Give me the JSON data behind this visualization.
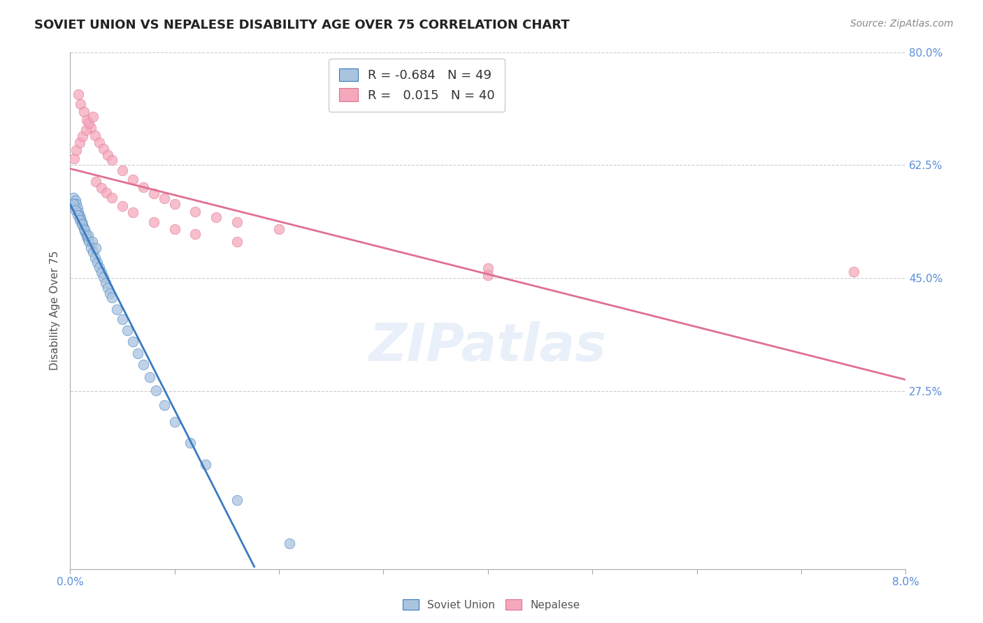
{
  "title": "SOVIET UNION VS NEPALESE DISABILITY AGE OVER 75 CORRELATION CHART",
  "source": "Source: ZipAtlas.com",
  "ylabel": "Disability Age Over 75",
  "x_min": 0.0,
  "x_max": 0.08,
  "y_min": 0.0,
  "y_max": 0.8,
  "y_ticks": [
    0.275,
    0.45,
    0.625,
    0.8
  ],
  "y_tick_labels": [
    "27.5%",
    "45.0%",
    "62.5%",
    "80.0%"
  ],
  "grid_color": "#cccccc",
  "background_color": "#ffffff",
  "soviet_color": "#aac4e0",
  "nepalese_color": "#f5a8bc",
  "soviet_line_color": "#3a7abf",
  "nepalese_line_color": "#e07090",
  "legend_R_soviet": "-0.684",
  "legend_N_soviet": "49",
  "legend_R_nepalese": "0.015",
  "legend_N_nepalese": "40",
  "watermark": "ZIPatlas",
  "title_fontsize": 13,
  "label_fontsize": 11,
  "tick_fontsize": 11,
  "legend_fontsize": 13,
  "source_fontsize": 10,
  "soviet_x": [
    0.0002,
    0.0003,
    0.0004,
    0.0005,
    0.0006,
    0.0007,
    0.0008,
    0.0009,
    0.001,
    0.0011,
    0.0012,
    0.0013,
    0.0014,
    0.0015,
    0.0016,
    0.0017,
    0.0018,
    0.0019,
    0.002,
    0.0021,
    0.0022,
    0.0023,
    0.0024,
    0.0025,
    0.0026,
    0.0027,
    0.0028,
    0.003,
    0.0032,
    0.0034,
    0.0036,
    0.0038,
    0.004,
    0.0042,
    0.0045,
    0.0048,
    0.0052,
    0.0056,
    0.006,
    0.0065,
    0.007,
    0.0076,
    0.0082,
    0.009,
    0.01,
    0.0115,
    0.013,
    0.016,
    0.021
  ],
  "soviet_y": [
    0.575,
    0.572,
    0.568,
    0.564,
    0.56,
    0.556,
    0.552,
    0.548,
    0.544,
    0.54,
    0.536,
    0.533,
    0.529,
    0.525,
    0.521,
    0.518,
    0.514,
    0.51,
    0.506,
    0.503,
    0.499,
    0.495,
    0.491,
    0.488,
    0.484,
    0.48,
    0.476,
    0.469,
    0.461,
    0.453,
    0.445,
    0.437,
    0.429,
    0.421,
    0.41,
    0.398,
    0.383,
    0.368,
    0.352,
    0.333,
    0.313,
    0.292,
    0.27,
    0.244,
    0.213,
    0.173,
    0.133,
    0.068,
    0.0
  ],
  "nepalese_x": [
    0.0008,
    0.0009,
    0.001,
    0.0011,
    0.0012,
    0.0013,
    0.0014,
    0.0015,
    0.0016,
    0.0017,
    0.0018,
    0.002,
    0.0022,
    0.0024,
    0.0026,
    0.0028,
    0.003,
    0.0035,
    0.004,
    0.0045,
    0.005,
    0.006,
    0.007,
    0.008,
    0.009,
    0.01,
    0.012,
    0.014,
    0.016,
    0.02,
    0.0004,
    0.0006,
    0.0008,
    0.0025,
    0.003,
    0.005,
    0.01,
    0.015,
    0.04,
    0.075
  ],
  "nepalese_y": [
    0.735,
    0.728,
    0.718,
    0.71,
    0.703,
    0.696,
    0.689,
    0.682,
    0.675,
    0.669,
    0.663,
    0.651,
    0.639,
    0.628,
    0.617,
    0.608,
    0.6,
    0.583,
    0.568,
    0.556,
    0.545,
    0.527,
    0.513,
    0.502,
    0.493,
    0.486,
    0.475,
    0.467,
    0.46,
    0.45,
    0.62,
    0.638,
    0.655,
    0.595,
    0.59,
    0.565,
    0.485,
    0.445,
    0.465,
    0.46
  ],
  "soviet_scatter_x": [
    0.0003,
    0.0005,
    0.0006,
    0.0007,
    0.0008,
    0.0009,
    0.001,
    0.0011,
    0.0012,
    0.0013,
    0.0014,
    0.0015,
    0.0016,
    0.0017,
    0.0018,
    0.002,
    0.0022,
    0.0024,
    0.0026,
    0.0028,
    0.003,
    0.0032,
    0.0034,
    0.0036,
    0.0038,
    0.004,
    0.0045,
    0.005,
    0.0055,
    0.006,
    0.0065,
    0.007,
    0.0076,
    0.0082,
    0.009,
    0.01,
    0.0115,
    0.013,
    0.016,
    0.021,
    0.0003,
    0.0005,
    0.0007,
    0.0009,
    0.0011,
    0.0014,
    0.0017,
    0.0021,
    0.0025
  ],
  "soviet_scatter_y": [
    0.575,
    0.57,
    0.565,
    0.558,
    0.552,
    0.547,
    0.542,
    0.537,
    0.532,
    0.527,
    0.523,
    0.518,
    0.514,
    0.51,
    0.506,
    0.497,
    0.49,
    0.482,
    0.474,
    0.467,
    0.459,
    0.451,
    0.443,
    0.435,
    0.427,
    0.42,
    0.402,
    0.386,
    0.369,
    0.352,
    0.334,
    0.316,
    0.297,
    0.276,
    0.253,
    0.228,
    0.195,
    0.162,
    0.106,
    0.04,
    0.565,
    0.555,
    0.548,
    0.54,
    0.533,
    0.525,
    0.516,
    0.507,
    0.497
  ],
  "nepalese_scatter_x": [
    0.0008,
    0.001,
    0.0013,
    0.0016,
    0.002,
    0.0024,
    0.0028,
    0.0032,
    0.0036,
    0.004,
    0.005,
    0.006,
    0.007,
    0.008,
    0.009,
    0.01,
    0.012,
    0.014,
    0.016,
    0.02,
    0.0025,
    0.003,
    0.0035,
    0.004,
    0.005,
    0.006,
    0.008,
    0.01,
    0.012,
    0.016,
    0.0004,
    0.0006,
    0.0009,
    0.0012,
    0.0015,
    0.0018,
    0.0022,
    0.04,
    0.04,
    0.075
  ],
  "nepalese_scatter_y": [
    0.735,
    0.72,
    0.708,
    0.695,
    0.683,
    0.671,
    0.66,
    0.65,
    0.641,
    0.633,
    0.617,
    0.603,
    0.591,
    0.581,
    0.573,
    0.565,
    0.553,
    0.544,
    0.537,
    0.526,
    0.6,
    0.59,
    0.582,
    0.575,
    0.562,
    0.552,
    0.537,
    0.526,
    0.518,
    0.506,
    0.635,
    0.648,
    0.66,
    0.67,
    0.68,
    0.69,
    0.7,
    0.465,
    0.455,
    0.46
  ]
}
